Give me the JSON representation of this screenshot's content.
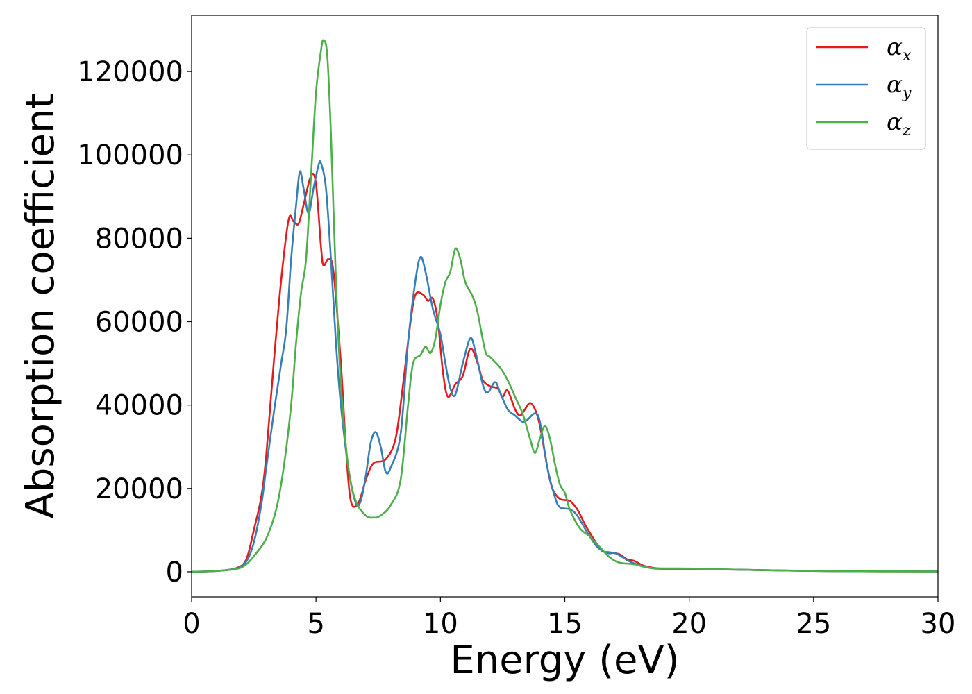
{
  "chart_data": {
    "type": "line",
    "title": "",
    "xlabel": "Energy (eV)",
    "ylabel": "Absorption coefficient",
    "xlim": [
      0,
      30
    ],
    "ylim": [
      -6000,
      133500
    ],
    "xticks": [
      0,
      5,
      10,
      15,
      20,
      25,
      30
    ],
    "yticks": [
      0,
      20000,
      40000,
      60000,
      80000,
      100000,
      120000
    ],
    "xtick_labels": [
      "0",
      "5",
      "10",
      "15",
      "20",
      "25",
      "30"
    ],
    "ytick_labels": [
      "0",
      "20000",
      "40000",
      "60000",
      "80000",
      "100000",
      "120000"
    ],
    "grid": false,
    "legend_position": "top-right",
    "series": [
      {
        "name": "α",
        "subscript": "x",
        "color": "#e41a1c",
        "points": [
          [
            0,
            0
          ],
          [
            1,
            200
          ],
          [
            1.8,
            900
          ],
          [
            2.2,
            3000
          ],
          [
            2.5,
            10000
          ],
          [
            2.8,
            18000
          ],
          [
            3.0,
            28000
          ],
          [
            3.3,
            50000
          ],
          [
            3.6,
            70000
          ],
          [
            3.9,
            84500
          ],
          [
            4.1,
            84000
          ],
          [
            4.3,
            83500
          ],
          [
            4.5,
            88000
          ],
          [
            4.8,
            95000
          ],
          [
            5.0,
            93000
          ],
          [
            5.2,
            78000
          ],
          [
            5.3,
            73500
          ],
          [
            5.5,
            75000
          ],
          [
            5.7,
            72000
          ],
          [
            6.0,
            50000
          ],
          [
            6.2,
            30000
          ],
          [
            6.4,
            17000
          ],
          [
            6.7,
            16500
          ],
          [
            7.0,
            22000
          ],
          [
            7.3,
            26000
          ],
          [
            7.8,
            27000
          ],
          [
            8.2,
            32000
          ],
          [
            8.5,
            45000
          ],
          [
            8.8,
            60000
          ],
          [
            9.0,
            66500
          ],
          [
            9.3,
            66500
          ],
          [
            9.5,
            65000
          ],
          [
            9.7,
            65500
          ],
          [
            9.9,
            60000
          ],
          [
            10.1,
            48000
          ],
          [
            10.3,
            42000
          ],
          [
            10.6,
            45000
          ],
          [
            10.9,
            47000
          ],
          [
            11.2,
            53500
          ],
          [
            11.5,
            50000
          ],
          [
            11.7,
            46000
          ],
          [
            12.0,
            44500
          ],
          [
            12.3,
            44000
          ],
          [
            12.5,
            42000
          ],
          [
            12.7,
            43500
          ],
          [
            13.0,
            39000
          ],
          [
            13.2,
            37500
          ],
          [
            13.4,
            39000
          ],
          [
            13.6,
            40500
          ],
          [
            13.8,
            39000
          ],
          [
            14.0,
            35000
          ],
          [
            14.3,
            25000
          ],
          [
            14.5,
            20000
          ],
          [
            14.8,
            17500
          ],
          [
            15.2,
            17000
          ],
          [
            15.5,
            15000
          ],
          [
            15.8,
            11500
          ],
          [
            16.2,
            7500
          ],
          [
            16.5,
            5000
          ],
          [
            16.8,
            4700
          ],
          [
            17.2,
            4200
          ],
          [
            17.5,
            3000
          ],
          [
            17.8,
            2600
          ],
          [
            18.2,
            1400
          ],
          [
            18.8,
            800
          ],
          [
            20,
            700
          ],
          [
            22,
            500
          ],
          [
            25,
            200
          ],
          [
            28,
            100
          ],
          [
            30,
            80
          ]
        ]
      },
      {
        "name": "α",
        "subscript": "y",
        "color": "#377eb8",
        "points": [
          [
            0,
            0
          ],
          [
            1,
            200
          ],
          [
            1.8,
            800
          ],
          [
            2.2,
            2500
          ],
          [
            2.5,
            7000
          ],
          [
            2.8,
            16000
          ],
          [
            3.0,
            25000
          ],
          [
            3.3,
            38000
          ],
          [
            3.6,
            50000
          ],
          [
            3.8,
            58000
          ],
          [
            4.0,
            75000
          ],
          [
            4.2,
            88000
          ],
          [
            4.35,
            96000
          ],
          [
            4.5,
            92000
          ],
          [
            4.7,
            86000
          ],
          [
            4.9,
            92000
          ],
          [
            5.1,
            97500
          ],
          [
            5.2,
            98000
          ],
          [
            5.4,
            92000
          ],
          [
            5.6,
            75000
          ],
          [
            5.8,
            55000
          ],
          [
            6.0,
            40000
          ],
          [
            6.3,
            25000
          ],
          [
            6.6,
            16500
          ],
          [
            6.8,
            17000
          ],
          [
            7.0,
            23000
          ],
          [
            7.2,
            31000
          ],
          [
            7.4,
            33500
          ],
          [
            7.6,
            30000
          ],
          [
            7.8,
            24000
          ],
          [
            8.0,
            25000
          ],
          [
            8.4,
            33000
          ],
          [
            8.7,
            55000
          ],
          [
            9.0,
            70000
          ],
          [
            9.2,
            75500
          ],
          [
            9.4,
            72000
          ],
          [
            9.7,
            63000
          ],
          [
            10.0,
            57000
          ],
          [
            10.2,
            50000
          ],
          [
            10.4,
            44000
          ],
          [
            10.6,
            42500
          ],
          [
            10.9,
            50000
          ],
          [
            11.2,
            56000
          ],
          [
            11.4,
            53000
          ],
          [
            11.7,
            45000
          ],
          [
            11.9,
            43000
          ],
          [
            12.2,
            45500
          ],
          [
            12.4,
            43000
          ],
          [
            12.7,
            39000
          ],
          [
            13.0,
            37500
          ],
          [
            13.3,
            36000
          ],
          [
            13.5,
            36500
          ],
          [
            13.8,
            38000
          ],
          [
            14.0,
            36000
          ],
          [
            14.3,
            25000
          ],
          [
            14.6,
            18000
          ],
          [
            14.8,
            15500
          ],
          [
            15.2,
            15000
          ],
          [
            15.5,
            13500
          ],
          [
            15.9,
            9500
          ],
          [
            16.3,
            6000
          ],
          [
            16.7,
            4500
          ],
          [
            17.0,
            4500
          ],
          [
            17.3,
            3600
          ],
          [
            17.6,
            2500
          ],
          [
            18.0,
            1600
          ],
          [
            18.6,
            800
          ],
          [
            20,
            700
          ],
          [
            22,
            500
          ],
          [
            25,
            200
          ],
          [
            28,
            100
          ],
          [
            30,
            80
          ]
        ]
      },
      {
        "name": "α",
        "subscript": "z",
        "color": "#4daf4a",
        "points": [
          [
            0,
            0
          ],
          [
            1,
            200
          ],
          [
            1.8,
            700
          ],
          [
            2.2,
            1800
          ],
          [
            2.6,
            4500
          ],
          [
            3.0,
            8000
          ],
          [
            3.4,
            15000
          ],
          [
            3.7,
            25000
          ],
          [
            4.0,
            40000
          ],
          [
            4.2,
            55000
          ],
          [
            4.4,
            67000
          ],
          [
            4.6,
            75000
          ],
          [
            4.8,
            95000
          ],
          [
            5.0,
            115000
          ],
          [
            5.2,
            125000
          ],
          [
            5.3,
            127500
          ],
          [
            5.45,
            124000
          ],
          [
            5.6,
            105000
          ],
          [
            5.8,
            70000
          ],
          [
            6.0,
            45000
          ],
          [
            6.3,
            25000
          ],
          [
            6.6,
            17000
          ],
          [
            7.0,
            13500
          ],
          [
            7.3,
            13000
          ],
          [
            7.6,
            13500
          ],
          [
            8.0,
            16000
          ],
          [
            8.4,
            22000
          ],
          [
            8.7,
            40000
          ],
          [
            8.9,
            50000
          ],
          [
            9.2,
            52000
          ],
          [
            9.4,
            54000
          ],
          [
            9.6,
            52500
          ],
          [
            9.8,
            56000
          ],
          [
            10.0,
            64000
          ],
          [
            10.2,
            69500
          ],
          [
            10.4,
            72000
          ],
          [
            10.6,
            77500
          ],
          [
            10.8,
            75000
          ],
          [
            11.0,
            69500
          ],
          [
            11.3,
            66000
          ],
          [
            11.5,
            62000
          ],
          [
            11.8,
            53000
          ],
          [
            12.0,
            51500
          ],
          [
            12.4,
            49000
          ],
          [
            12.7,
            46000
          ],
          [
            13.0,
            42000
          ],
          [
            13.3,
            38000
          ],
          [
            13.6,
            32000
          ],
          [
            13.8,
            28500
          ],
          [
            14.0,
            32000
          ],
          [
            14.2,
            35000
          ],
          [
            14.4,
            32000
          ],
          [
            14.6,
            26000
          ],
          [
            14.8,
            21000
          ],
          [
            15.0,
            19000
          ],
          [
            15.2,
            15000
          ],
          [
            15.6,
            10500
          ],
          [
            16.0,
            8500
          ],
          [
            16.4,
            6000
          ],
          [
            16.8,
            3500
          ],
          [
            17.2,
            2200
          ],
          [
            17.8,
            1800
          ],
          [
            18.5,
            900
          ],
          [
            20,
            800
          ],
          [
            22,
            500
          ],
          [
            25,
            200
          ],
          [
            28,
            100
          ],
          [
            30,
            80
          ]
        ]
      }
    ]
  }
}
